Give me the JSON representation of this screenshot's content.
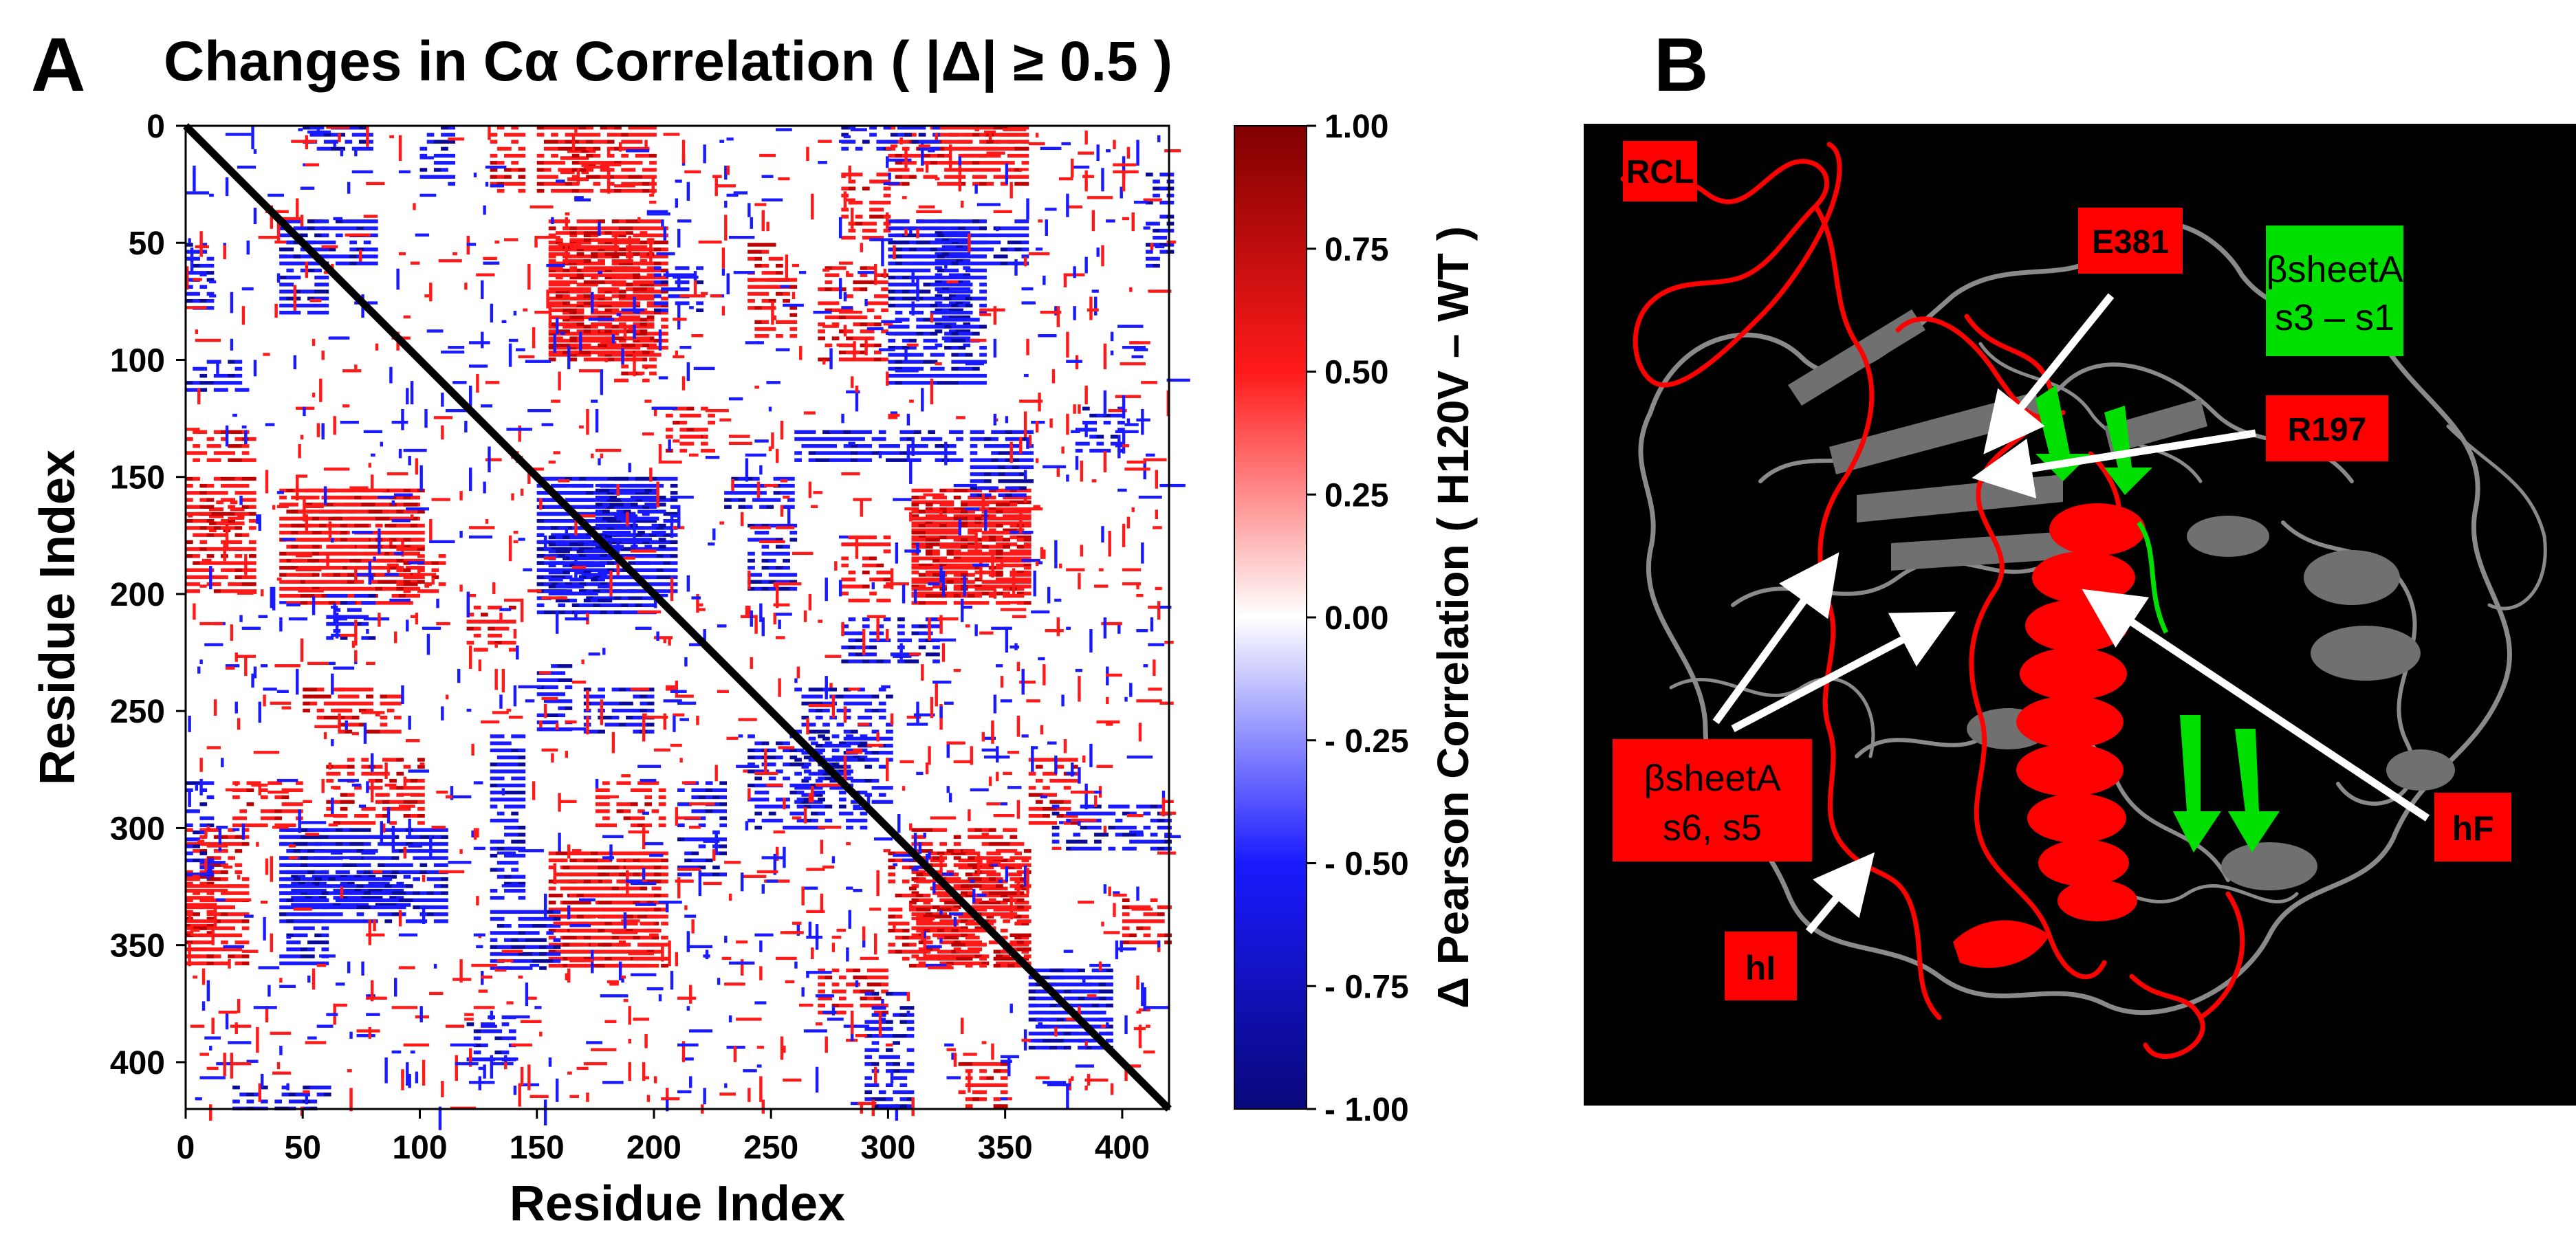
{
  "chart_data": {
    "type": "heatmap",
    "panel_label": "A",
    "title": "Changes in Cα Correlation ( |Δ|  ≥  0.5 )",
    "xlabel": "Residue Index",
    "ylabel": "Residue Index",
    "xlim": [
      0,
      420
    ],
    "ylim": [
      0,
      420
    ],
    "x_ticks": [
      0,
      50,
      100,
      150,
      200,
      250,
      300,
      350,
      400
    ],
    "y_ticks": [
      0,
      50,
      100,
      150,
      200,
      250,
      300,
      350,
      400
    ],
    "threshold": 0.5,
    "grid": false,
    "diagonal_value": 1.0,
    "colorbar": {
      "label": "Δ Pearson Correlation ( H120V – WT )",
      "range": [
        -1.0,
        1.0
      ],
      "ticks": [
        "1.00",
        "0.75",
        "0.50",
        "0.25",
        "0.00",
        "- 0.25",
        "- 0.50",
        "- 0.75",
        "- 1.00"
      ],
      "tick_values": [
        1.0,
        0.75,
        0.5,
        0.25,
        0.0,
        -0.25,
        -0.5,
        -0.75,
        -1.0
      ],
      "colors": [
        "#08087a",
        "#1a1aff",
        "#ffffff",
        "#ff1a1a",
        "#800000"
      ]
    },
    "positive_blocks": [
      [
        0,
        10,
        320,
        345,
        0.8
      ],
      [
        0,
        10,
        345,
        360,
        0.7
      ],
      [
        10,
        25,
        160,
        175,
        0.65
      ],
      [
        40,
        100,
        155,
        205,
        0.85
      ],
      [
        50,
        70,
        240,
        255,
        0.6
      ],
      [
        60,
        100,
        270,
        300,
        0.6
      ],
      [
        130,
        145,
        0,
        30,
        0.7
      ],
      [
        150,
        200,
        0,
        30,
        0.8
      ],
      [
        155,
        200,
        45,
        100,
        0.85
      ],
      [
        160,
        200,
        310,
        360,
        0.85
      ],
      [
        175,
        205,
        280,
        300,
        0.6
      ],
      [
        280,
        300,
        20,
        50,
        0.7
      ],
      [
        300,
        360,
        0,
        25,
        0.75
      ],
      [
        310,
        360,
        155,
        205,
        0.85
      ],
      [
        310,
        360,
        300,
        360,
        0.7
      ],
      [
        360,
        380,
        270,
        300,
        0.6
      ],
      [
        240,
        260,
        65,
        90,
        0.6
      ],
      [
        90,
        110,
        180,
        200,
        0.55
      ],
      [
        205,
        225,
        120,
        140,
        0.55
      ],
      [
        400,
        420,
        330,
        350,
        0.6
      ]
    ],
    "negative_blocks": [
      [
        0,
        10,
        50,
        80,
        0.7
      ],
      [
        0,
        10,
        280,
        320,
        0.65
      ],
      [
        40,
        60,
        40,
        80,
        0.8
      ],
      [
        40,
        60,
        300,
        360,
        0.75
      ],
      [
        45,
        95,
        320,
        335,
        0.85
      ],
      [
        100,
        115,
        0,
        25,
        0.65
      ],
      [
        130,
        145,
        260,
        330,
        0.7
      ],
      [
        150,
        200,
        150,
        210,
        0.85
      ],
      [
        150,
        165,
        230,
        260,
        0.7
      ],
      [
        175,
        205,
        155,
        180,
        0.8
      ],
      [
        210,
        230,
        280,
        320,
        0.6
      ],
      [
        240,
        260,
        170,
        200,
        0.75
      ],
      [
        260,
        300,
        240,
        290,
        0.6
      ],
      [
        300,
        340,
        40,
        110,
        0.85
      ],
      [
        335,
        360,
        130,
        160,
        0.85
      ],
      [
        360,
        395,
        360,
        395,
        0.7
      ],
      [
        380,
        400,
        120,
        140,
        0.65
      ],
      [
        410,
        420,
        20,
        60,
        0.7
      ],
      [
        290,
        310,
        370,
        420,
        0.6
      ],
      [
        200,
        220,
        60,
        80,
        0.55
      ]
    ]
  },
  "panel_b": {
    "panel_label": "B",
    "labels": {
      "rcl": "RCL",
      "e381": "E381",
      "r197": "R197",
      "sheet_a_top_line1": "βsheetA",
      "sheet_a_top_line2": "s3 – s1",
      "sheet_a_bottom_line1": "βsheetA",
      "sheet_a_bottom_line2": "s6, s5",
      "hf": "hF",
      "hi": "hI"
    },
    "colors": {
      "background": "#000000",
      "protein_gray": "#8a8a8a",
      "protein_red": "#ff0000",
      "protein_green": "#00e000",
      "label_red": "#ff0000",
      "label_green": "#00e000",
      "arrow": "#ffffff"
    }
  }
}
